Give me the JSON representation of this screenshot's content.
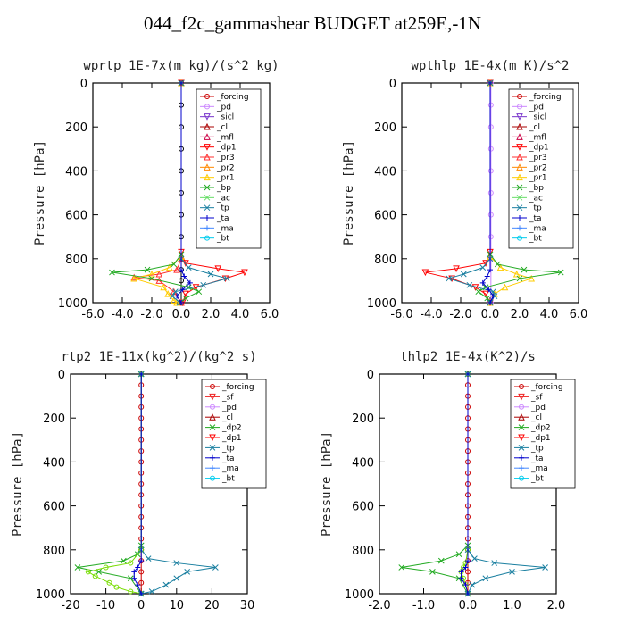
{
  "title": "044_f2c_gammashear  BUDGET at259E,-1N",
  "chart_data": [
    {
      "type": "line",
      "title": "wprtp  1E-7x(m kg)/(s^2 kg)",
      "ylabel": "Pressure [hPa]",
      "xlim": [
        -6,
        6
      ],
      "ylim": [
        1000,
        0
      ],
      "xticks": [
        "-6.0",
        "-4.0",
        "-2.0",
        "0.0",
        "2.0",
        "4.0",
        "6.0"
      ],
      "yticks": [
        "0",
        "200",
        "400",
        "600",
        "800",
        "1000"
      ],
      "show_yaxis_label": true,
      "legend": [
        "_forcing",
        "_pd",
        "_sicl",
        "_cl",
        "_mfl",
        "_dp1",
        "_pr3",
        "_pr2",
        "_pr1",
        "_bp",
        "_ac",
        "_tp",
        "_ta",
        "_ma",
        "_bt"
      ],
      "series": [
        {
          "name": "_forcing",
          "color": "#000000",
          "marker": "o",
          "x": [
            0,
            0,
            0,
            0,
            0,
            0,
            0,
            0,
            0,
            0,
            0,
            0
          ],
          "y": [
            0,
            100,
            200,
            300,
            400,
            500,
            600,
            700,
            800,
            850,
            900,
            1000
          ]
        },
        {
          "name": "_dp1",
          "color": "#ff0000",
          "marker": "v",
          "x": [
            0,
            0,
            0.3,
            2.5,
            4.3,
            3,
            1,
            0.3,
            0.1
          ],
          "y": [
            0,
            770,
            820,
            845,
            862,
            890,
            930,
            960,
            1000
          ]
        },
        {
          "name": "_pr3",
          "color": "#ff3030",
          "marker": "^",
          "x": [
            0,
            0,
            -0.3,
            -1.5,
            -3.2,
            -1.5,
            -0.5,
            0
          ],
          "y": [
            0,
            800,
            850,
            870,
            885,
            900,
            950,
            1000
          ]
        },
        {
          "name": "_pr1",
          "color": "#ffcc00",
          "marker": "^",
          "x": [
            0,
            0,
            -0.8,
            -2,
            -3.2,
            -1.2,
            -0.9,
            -0.5,
            -0.3
          ],
          "y": [
            0,
            790,
            840,
            870,
            890,
            930,
            960,
            990,
            1000
          ]
        },
        {
          "name": "_bp",
          "color": "#22aa22",
          "marker": "x",
          "x": [
            0,
            0,
            -0.5,
            -2.3,
            -4.7,
            -2,
            0.5,
            1.2,
            0.3,
            -0.1
          ],
          "y": [
            0,
            780,
            825,
            850,
            862,
            890,
            930,
            950,
            980,
            1000
          ]
        },
        {
          "name": "_tp",
          "color": "#1a7fa0",
          "marker": "x",
          "x": [
            0,
            0,
            0.5,
            2,
            3.1,
            1.5,
            -0.4,
            -0.6,
            -0.1
          ],
          "y": [
            0,
            800,
            840,
            870,
            890,
            920,
            950,
            970,
            1000
          ]
        },
        {
          "name": "_ta",
          "color": "#0000cc",
          "marker": "+",
          "x": [
            0,
            0,
            0.2,
            0.6,
            0.1,
            -0.3,
            0
          ],
          "y": [
            0,
            850,
            880,
            910,
            940,
            970,
            1000
          ]
        }
      ]
    },
    {
      "type": "line",
      "title": "wpthlp  1E-4x(m K)/s^2",
      "ylabel": "Pressure [hPa]",
      "xlim": [
        -6,
        6
      ],
      "ylim": [
        1000,
        0
      ],
      "xticks": [
        "-6.0",
        "-4.0",
        "-2.0",
        "0.0",
        "2.0",
        "4.0",
        "6.0"
      ],
      "yticks": [
        "0",
        "200",
        "400",
        "600",
        "800",
        "1000"
      ],
      "show_yaxis_label": true,
      "legend": [
        "_forcing",
        "_pd",
        "_sicl",
        "_cl",
        "_mfl",
        "_dp1",
        "_pr3",
        "_pr2",
        "_pr1",
        "_bp",
        "_ac",
        "_tp",
        "_ta",
        "_ma",
        "_bt"
      ],
      "series": [
        {
          "name": "_pd",
          "color": "#cc88ff",
          "marker": "o",
          "x": [
            0.05,
            0.05,
            0.05,
            0.05,
            0.05,
            0.05,
            0.05,
            0.05,
            0.05,
            0.05
          ],
          "y": [
            0,
            100,
            200,
            300,
            400,
            500,
            600,
            700,
            800,
            1000
          ]
        },
        {
          "name": "_dp1",
          "color": "#ff0000",
          "marker": "v",
          "x": [
            0,
            0,
            -0.3,
            -2.3,
            -4.4,
            -2.6,
            -1,
            -0.3,
            0
          ],
          "y": [
            0,
            770,
            820,
            845,
            862,
            890,
            930,
            960,
            1000
          ]
        },
        {
          "name": "_pr1",
          "color": "#ffcc00",
          "marker": "^",
          "x": [
            0,
            0,
            0.7,
            1.8,
            2.8,
            1,
            0.3,
            0
          ],
          "y": [
            0,
            790,
            840,
            870,
            890,
            930,
            960,
            1000
          ]
        },
        {
          "name": "_bp",
          "color": "#22aa22",
          "marker": "x",
          "x": [
            0,
            0,
            0.5,
            2.3,
            4.8,
            2,
            -0.3,
            -0.8,
            -0.2,
            0
          ],
          "y": [
            0,
            780,
            825,
            850,
            862,
            890,
            930,
            950,
            980,
            1000
          ]
        },
        {
          "name": "_tp",
          "color": "#1a7fa0",
          "marker": "x",
          "x": [
            0,
            0,
            -0.5,
            -1.8,
            -2.8,
            -1.4,
            0.2,
            0.3,
            0
          ],
          "y": [
            0,
            800,
            840,
            870,
            890,
            920,
            950,
            970,
            1000
          ]
        },
        {
          "name": "_ta",
          "color": "#0000cc",
          "marker": "+",
          "x": [
            0,
            0,
            -0.2,
            -0.5,
            -0.1,
            0.2,
            0
          ],
          "y": [
            0,
            850,
            880,
            910,
            940,
            970,
            1000
          ]
        }
      ]
    },
    {
      "type": "line",
      "title": "rtp2  1E-11x(kg^2)/(kg^2 s)",
      "ylabel": "Pressure [hPa]",
      "xlim": [
        -20,
        30
      ],
      "ylim": [
        1000,
        0
      ],
      "xticks": [
        "-20",
        "-10",
        "0",
        "10",
        "20",
        "30"
      ],
      "yticks": [
        "0",
        "200",
        "400",
        "600",
        "800",
        "1000"
      ],
      "show_yaxis_label": true,
      "legend": [
        "_forcing",
        "_sf",
        "_pd",
        "_cl",
        "_dp2",
        "_dp1",
        "_tp",
        "_ta",
        "_ma",
        "_bt"
      ],
      "series": [
        {
          "name": "_forcing",
          "color": "#cc0000",
          "marker": "o",
          "x": [
            0,
            0,
            0,
            0,
            0,
            0,
            0,
            0,
            0,
            0,
            0,
            0,
            0,
            0,
            0,
            0,
            0,
            0,
            0,
            0,
            0
          ],
          "y": [
            0,
            50,
            100,
            150,
            200,
            250,
            300,
            350,
            400,
            450,
            500,
            550,
            600,
            650,
            700,
            750,
            800,
            850,
            900,
            950,
            1000
          ]
        },
        {
          "name": "_dp2",
          "color": "#22aa22",
          "marker": "x",
          "x": [
            0,
            0,
            -1,
            -5,
            -18,
            -12,
            -3,
            0
          ],
          "y": [
            0,
            780,
            820,
            850,
            880,
            900,
            930,
            1000
          ]
        },
        {
          "name": "_dp1",
          "color": "#77dd00",
          "marker": "o",
          "x": [
            0,
            0,
            -3,
            -10,
            -15,
            -13,
            -9,
            -7,
            -3,
            0
          ],
          "y": [
            0,
            800,
            860,
            880,
            900,
            920,
            950,
            970,
            990,
            1000
          ]
        },
        {
          "name": "_tp",
          "color": "#1a7fa0",
          "marker": "x",
          "x": [
            0,
            0,
            2,
            10,
            21,
            13,
            10,
            7,
            3,
            0
          ],
          "y": [
            0,
            800,
            840,
            860,
            880,
            900,
            930,
            960,
            990,
            1000
          ]
        },
        {
          "name": "_ta",
          "color": "#0000cc",
          "marker": "+",
          "x": [
            0,
            0,
            -1,
            -2,
            -2,
            -1,
            0
          ],
          "y": [
            0,
            850,
            880,
            900,
            930,
            960,
            1000
          ]
        }
      ]
    },
    {
      "type": "line",
      "title": "thlp2  1E-4x(K^2)/s",
      "ylabel": "Pressure [hPa]",
      "xlim": [
        -2,
        2
      ],
      "ylim": [
        1000,
        0
      ],
      "xticks": [
        "-2.0",
        "-1.0",
        "0.0",
        "1.0",
        "2.0"
      ],
      "yticks": [
        "0",
        "200",
        "400",
        "600",
        "800",
        "1000"
      ],
      "show_yaxis_label": true,
      "legend": [
        "_forcing",
        "_sf",
        "_pd",
        "_cl",
        "_dp2",
        "_dp1",
        "_tp",
        "_ta",
        "_ma",
        "_bt"
      ],
      "series": [
        {
          "name": "_forcing",
          "color": "#cc0000",
          "marker": "o",
          "x": [
            0,
            0,
            0,
            0,
            0,
            0,
            0,
            0,
            0,
            0,
            0,
            0,
            0,
            0,
            0,
            0,
            0,
            0,
            0,
            0,
            0
          ],
          "y": [
            0,
            50,
            100,
            150,
            200,
            250,
            300,
            350,
            400,
            450,
            500,
            550,
            600,
            650,
            700,
            750,
            800,
            850,
            900,
            950,
            1000
          ]
        },
        {
          "name": "_dp2",
          "color": "#22aa22",
          "marker": "x",
          "x": [
            0,
            0,
            -0.2,
            -0.6,
            -1.5,
            -0.8,
            -0.2,
            0
          ],
          "y": [
            0,
            780,
            820,
            850,
            880,
            900,
            930,
            1000
          ]
        },
        {
          "name": "_dp1",
          "color": "#77dd00",
          "marker": "o",
          "x": [
            0,
            0,
            -0.05,
            -0.1,
            -0.15,
            -0.1,
            -0.05,
            0
          ],
          "y": [
            0,
            800,
            860,
            880,
            900,
            930,
            960,
            1000
          ]
        },
        {
          "name": "_tp",
          "color": "#1a7fa0",
          "marker": "x",
          "x": [
            0,
            0,
            0.15,
            0.6,
            1.75,
            1,
            0.4,
            0.1,
            0
          ],
          "y": [
            0,
            800,
            840,
            860,
            880,
            900,
            930,
            960,
            1000
          ]
        },
        {
          "name": "_ta",
          "color": "#0000cc",
          "marker": "+",
          "x": [
            0,
            0,
            -0.05,
            -0.15,
            -0.15,
            -0.05,
            0
          ],
          "y": [
            0,
            850,
            880,
            900,
            930,
            960,
            1000
          ]
        }
      ]
    }
  ]
}
